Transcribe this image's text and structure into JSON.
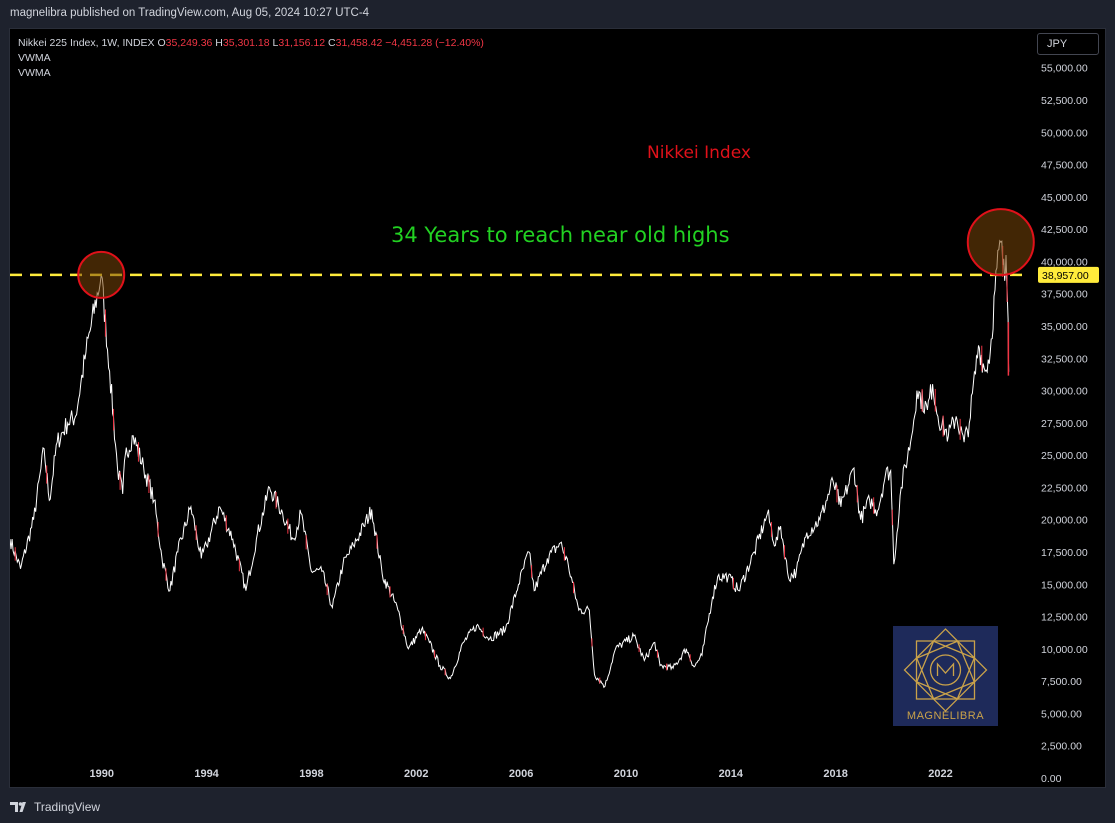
{
  "header": {
    "published": "magnelibra published on TradingView.com, Aug 05, 2024 10:27 UTC-4"
  },
  "footer": {
    "brand": "TradingView"
  },
  "legend": {
    "symbol": "Nikkei 225 Index, 1W, INDEX",
    "o_label": "O",
    "o": "35,249.36",
    "h_label": "H",
    "h": "35,301.18",
    "l_label": "L",
    "l": "31,156.12",
    "c_label": "C",
    "c": "31,458.42",
    "change": "−4,451.28 (−12.40%)",
    "indicators": [
      "VWMA",
      "VWMA"
    ]
  },
  "currency_button": "JPY",
  "logo": {
    "text": "MAGNELIBRA"
  },
  "colors": {
    "background": "#000000",
    "frame": "#1e222d",
    "line": "#ffffff",
    "down": "#f23645",
    "level": "#ffeb3b",
    "annotation_green": "#22d122",
    "annotation_red": "#e0111a"
  },
  "chart_data": {
    "type": "line",
    "title": "Nikkei Index",
    "annotation": "34 Years to reach near old highs",
    "price_label": "38,957.00",
    "horizontal_line": 38957,
    "highlight_circles": [
      {
        "x": 1989.98,
        "y": 38957
      },
      {
        "x": 2024.3,
        "y": 41500
      }
    ],
    "xlim": [
      1986.5,
      2025.3
    ],
    "ylim": [
      -700,
      58000
    ],
    "x_ticks": [
      {
        "v": 1990,
        "label": "1990"
      },
      {
        "v": 1994,
        "label": "1994"
      },
      {
        "v": 1998,
        "label": "1998"
      },
      {
        "v": 2002,
        "label": "2002"
      },
      {
        "v": 2006,
        "label": "2006"
      },
      {
        "v": 2010,
        "label": "2010"
      },
      {
        "v": 2014,
        "label": "2014"
      },
      {
        "v": 2018,
        "label": "2018"
      },
      {
        "v": 2022,
        "label": "2022"
      }
    ],
    "y_ticks": [
      {
        "v": 55000,
        "label": "55,000.00"
      },
      {
        "v": 52500,
        "label": "52,500.00"
      },
      {
        "v": 50000,
        "label": "50,000.00"
      },
      {
        "v": 47500,
        "label": "47,500.00"
      },
      {
        "v": 45000,
        "label": "45,000.00"
      },
      {
        "v": 42500,
        "label": "42,500.00"
      },
      {
        "v": 40000,
        "label": "40,000.00"
      },
      {
        "v": 37500,
        "label": "37,500.00"
      },
      {
        "v": 35000,
        "label": "35,000.00"
      },
      {
        "v": 32500,
        "label": "32,500.00"
      },
      {
        "v": 30000,
        "label": "30,000.00"
      },
      {
        "v": 27500,
        "label": "27,500.00"
      },
      {
        "v": 25000,
        "label": "25,000.00"
      },
      {
        "v": 22500,
        "label": "22,500.00"
      },
      {
        "v": 20000,
        "label": "20,000.00"
      },
      {
        "v": 17500,
        "label": "17,500.00"
      },
      {
        "v": 15000,
        "label": "15,000.00"
      },
      {
        "v": 12500,
        "label": "12,500.00"
      },
      {
        "v": 10000,
        "label": "10,000.00"
      },
      {
        "v": 7500,
        "label": "7,500.00"
      },
      {
        "v": 5000,
        "label": "5,000.00"
      },
      {
        "v": 2500,
        "label": "2,500.00"
      },
      {
        "v": 0,
        "label": "0.00"
      }
    ],
    "series": [
      {
        "points": [
          [
            1986.5,
            18500
          ],
          [
            1986.9,
            16200
          ],
          [
            1987.4,
            20000
          ],
          [
            1987.8,
            25500
          ],
          [
            1988.0,
            21500
          ],
          [
            1988.3,
            26000
          ],
          [
            1988.7,
            27500
          ],
          [
            1989.0,
            28000
          ],
          [
            1989.4,
            33000
          ],
          [
            1989.98,
            38957
          ],
          [
            1990.3,
            31500
          ],
          [
            1990.6,
            24000
          ],
          [
            1990.8,
            22000
          ],
          [
            1990.9,
            25000
          ],
          [
            1991.2,
            26500
          ],
          [
            1991.6,
            24000
          ],
          [
            1992.0,
            21500
          ],
          [
            1992.3,
            17000
          ],
          [
            1992.6,
            14500
          ],
          [
            1992.9,
            17500
          ],
          [
            1993.4,
            21000
          ],
          [
            1993.8,
            17000
          ],
          [
            1994.0,
            18000
          ],
          [
            1994.5,
            21000
          ],
          [
            1995.0,
            18500
          ],
          [
            1995.5,
            14500
          ],
          [
            1995.9,
            18500
          ],
          [
            1996.4,
            22500
          ],
          [
            1996.9,
            20500
          ],
          [
            1997.3,
            18500
          ],
          [
            1997.6,
            20500
          ],
          [
            1998.0,
            16000
          ],
          [
            1998.4,
            16000
          ],
          [
            1998.8,
            13200
          ],
          [
            1999.2,
            16500
          ],
          [
            1999.6,
            18000
          ],
          [
            2000.0,
            19500
          ],
          [
            2000.3,
            20800
          ],
          [
            2000.7,
            15800
          ],
          [
            2001.3,
            13000
          ],
          [
            2001.7,
            10000
          ],
          [
            2002.2,
            11500
          ],
          [
            2002.5,
            10500
          ],
          [
            2002.9,
            8700
          ],
          [
            2003.3,
            7700
          ],
          [
            2003.8,
            10500
          ],
          [
            2004.3,
            11800
          ],
          [
            2004.8,
            10800
          ],
          [
            2005.4,
            11500
          ],
          [
            2005.9,
            15000
          ],
          [
            2006.3,
            17500
          ],
          [
            2006.5,
            14500
          ],
          [
            2007.0,
            17000
          ],
          [
            2007.5,
            18200
          ],
          [
            2007.8,
            16500
          ],
          [
            2008.2,
            13000
          ],
          [
            2008.6,
            13000
          ],
          [
            2008.8,
            8000
          ],
          [
            2009.2,
            7100
          ],
          [
            2009.6,
            10000
          ],
          [
            2010.3,
            11000
          ],
          [
            2010.7,
            9100
          ],
          [
            2011.1,
            10500
          ],
          [
            2011.3,
            8700
          ],
          [
            2011.8,
            8500
          ],
          [
            2012.3,
            10000
          ],
          [
            2012.6,
            8600
          ],
          [
            2012.9,
            9500
          ],
          [
            2013.3,
            14000
          ],
          [
            2013.5,
            15600
          ],
          [
            2013.9,
            15600
          ],
          [
            2014.3,
            14500
          ],
          [
            2014.9,
            17500
          ],
          [
            2015.4,
            20500
          ],
          [
            2015.7,
            18000
          ],
          [
            2015.9,
            19500
          ],
          [
            2016.2,
            15500
          ],
          [
            2016.5,
            16000
          ],
          [
            2016.9,
            19000
          ],
          [
            2017.4,
            20000
          ],
          [
            2017.9,
            23000
          ],
          [
            2018.2,
            21000
          ],
          [
            2018.7,
            24000
          ],
          [
            2018.95,
            20000
          ],
          [
            2019.3,
            21500
          ],
          [
            2019.6,
            20700
          ],
          [
            2019.9,
            23500
          ],
          [
            2020.1,
            23800
          ],
          [
            2020.22,
            16550
          ],
          [
            2020.5,
            22500
          ],
          [
            2020.9,
            26500
          ],
          [
            2021.1,
            30000
          ],
          [
            2021.5,
            28500
          ],
          [
            2021.7,
            30500
          ],
          [
            2021.9,
            28000
          ],
          [
            2022.3,
            26500
          ],
          [
            2022.6,
            28000
          ],
          [
            2022.9,
            26000
          ],
          [
            2023.1,
            27500
          ],
          [
            2023.45,
            33500
          ],
          [
            2023.7,
            31500
          ],
          [
            2023.9,
            33000
          ],
          [
            2024.15,
            39500
          ],
          [
            2024.3,
            41500
          ],
          [
            2024.45,
            38500
          ],
          [
            2024.5,
            40500
          ],
          [
            2024.58,
            35500
          ],
          [
            2024.6,
            31458
          ]
        ]
      }
    ]
  }
}
